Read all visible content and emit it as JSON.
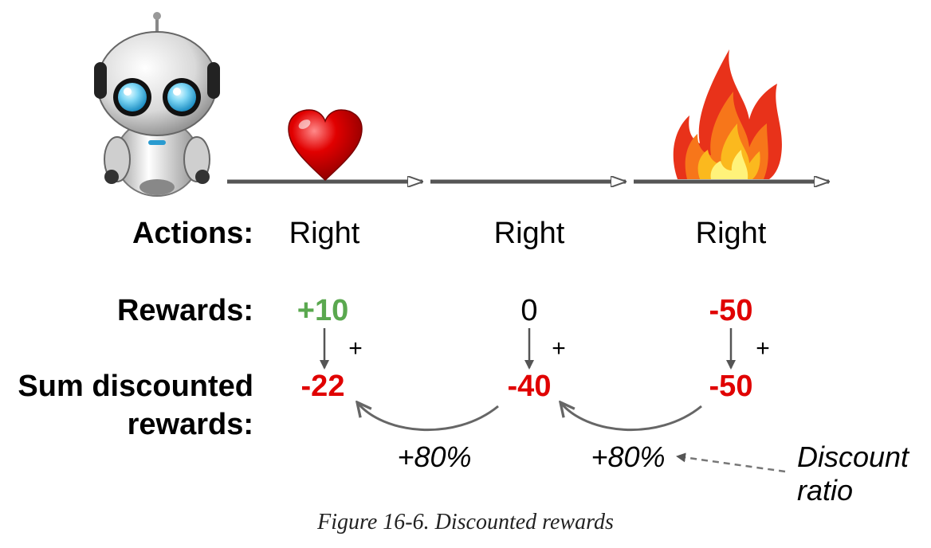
{
  "row_labels": {
    "actions": "Actions:",
    "rewards": "Rewards:",
    "sum_line1": "Sum discounted",
    "sum_line2": "rewards:"
  },
  "steps": [
    {
      "action": "Right",
      "reward": "+10",
      "reward_color": "#5aa84f",
      "sum": "-22",
      "icon": "heart-icon"
    },
    {
      "action": "Right",
      "reward": "0",
      "reward_color": "#000000",
      "sum": "-40",
      "icon": ""
    },
    {
      "action": "Right",
      "reward": "-50",
      "reward_color": "#e00000",
      "sum": "-50",
      "icon": "fire-icon"
    }
  ],
  "plus_sign": "+",
  "discount_labels": [
    "+80%",
    "+80%"
  ],
  "discount_note_line1": "Discount",
  "discount_note_line2": "ratio",
  "caption": "Figure 16-6. Discounted rewards",
  "colors": {
    "negative": "#e00000",
    "positive": "#5aa84f",
    "arrow": "#555555",
    "timeline": "#555555"
  }
}
